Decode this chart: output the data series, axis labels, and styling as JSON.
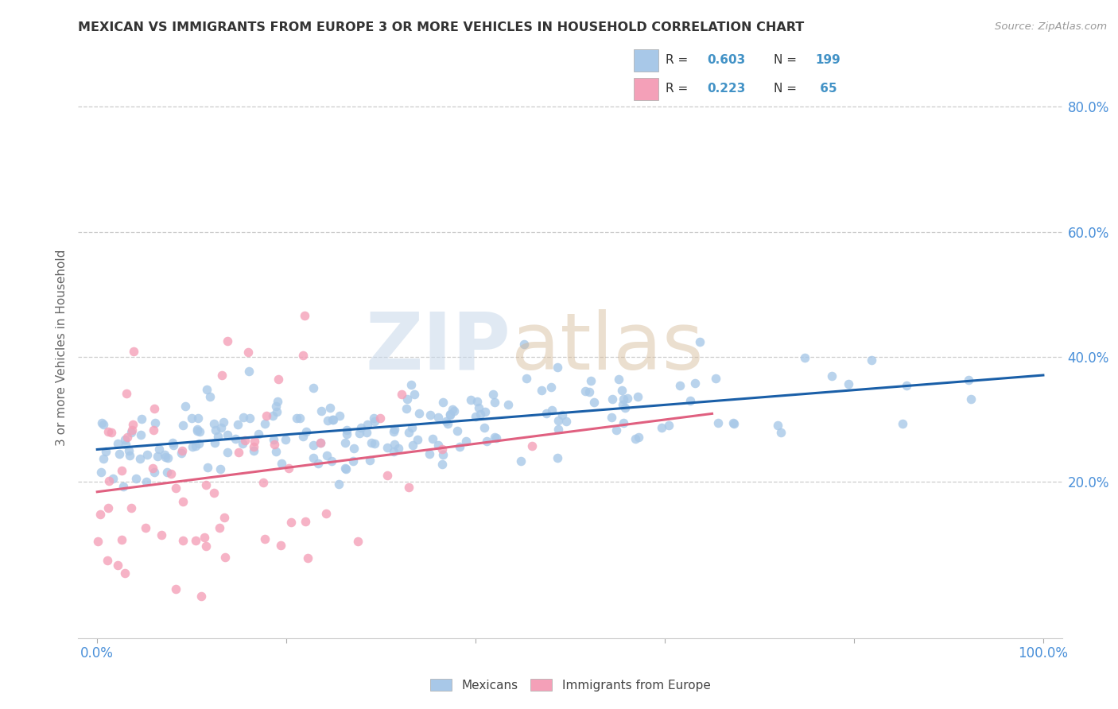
{
  "title": "MEXICAN VS IMMIGRANTS FROM EUROPE 3 OR MORE VEHICLES IN HOUSEHOLD CORRELATION CHART",
  "source": "Source: ZipAtlas.com",
  "ylabel": "3 or more Vehicles in Household",
  "legend_label1": "Mexicans",
  "legend_label2": "Immigrants from Europe",
  "R1": 0.603,
  "N1": 199,
  "R2": 0.223,
  "N2": 65,
  "color_blue": "#a8c8e8",
  "color_pink": "#f4a0b8",
  "color_blue_line": "#1a5fa8",
  "color_pink_line": "#e06080",
  "color_text_blue": "#4292c6",
  "color_grid": "#cccccc",
  "color_title": "#333333",
  "color_source": "#999999",
  "watermark_zip_color": "#c5d5e5",
  "watermark_atlas_color": "#c8b090",
  "ytick_values": [
    0.2,
    0.4,
    0.6,
    0.8
  ],
  "ytick_labels": [
    "20.0%",
    "40.0%",
    "60.0%",
    "80.0%"
  ],
  "xlim": [
    -0.02,
    1.02
  ],
  "ylim": [
    -0.05,
    0.88
  ]
}
